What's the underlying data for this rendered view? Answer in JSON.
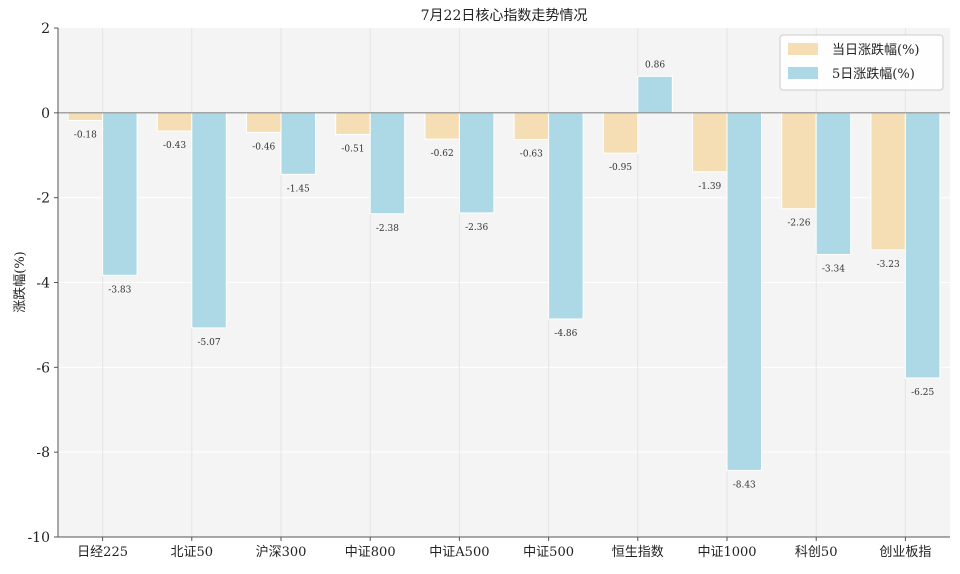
{
  "chart_data": {
    "type": "bar",
    "title": "7月22日核心指数走势情况",
    "xlabel": "",
    "ylabel": "涨跌幅(%)",
    "ylim": [
      -10,
      2
    ],
    "yticks": [
      2,
      0,
      -2,
      -4,
      -6,
      -8,
      -10
    ],
    "grid": true,
    "legend_position": "top-right",
    "categories": [
      "日经225",
      "北证50",
      "沪深300",
      "中证800",
      "中证A500",
      "中证500",
      "恒生指数",
      "中证1000",
      "科创50",
      "创业板指"
    ],
    "series": [
      {
        "name": "当日涨跌幅(%)",
        "color": "#f5deb3",
        "values": [
          -0.18,
          -0.43,
          -0.46,
          -0.51,
          -0.62,
          -0.63,
          -0.95,
          -1.39,
          -2.26,
          -3.23
        ]
      },
      {
        "name": "5日涨跌幅(%)",
        "color": "#add8e6",
        "values": [
          -3.83,
          -5.07,
          -1.45,
          -2.38,
          -2.36,
          -4.86,
          0.86,
          -8.43,
          -3.34,
          -6.25
        ]
      }
    ]
  }
}
